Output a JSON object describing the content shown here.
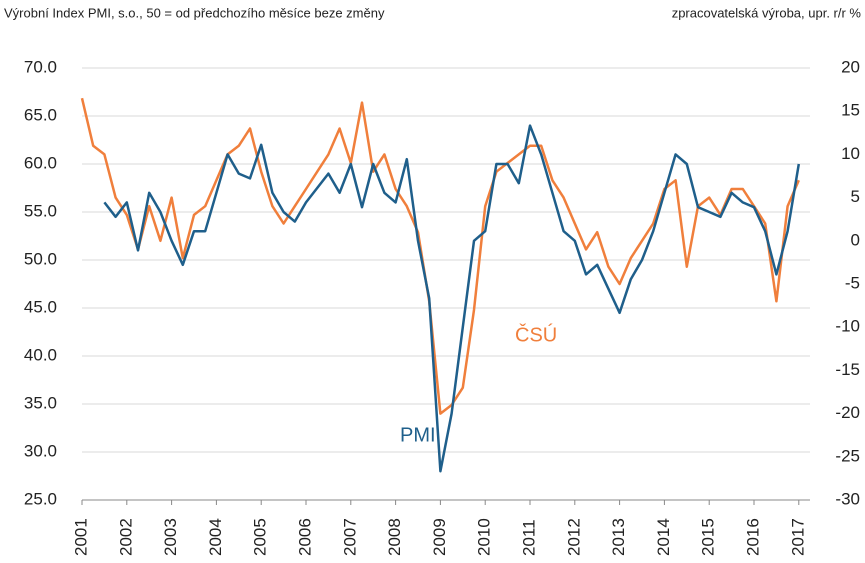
{
  "chart_data": {
    "type": "line",
    "title": "Výrobní Index PMI, s.o., 50 = od předchozího měsíce beze změny",
    "y2_label": "zpracovatelská výroba, upr. r/r %",
    "xlim": [
      2001,
      2017.25
    ],
    "xticks": [
      2001,
      2002,
      2003,
      2004,
      2005,
      2006,
      2007,
      2008,
      2009,
      2010,
      2011,
      2012,
      2013,
      2014,
      2015,
      2016,
      2017
    ],
    "ylim": [
      25,
      70
    ],
    "yticks": [
      {
        "value": 25,
        "label": "25.0"
      },
      {
        "value": 30,
        "label": "30.0"
      },
      {
        "value": 35,
        "label": "35.0"
      },
      {
        "value": 40,
        "label": "40.0"
      },
      {
        "value": 45,
        "label": "45.0"
      },
      {
        "value": 50,
        "label": "50.0"
      },
      {
        "value": 55,
        "label": "55.0"
      },
      {
        "value": 60,
        "label": "60.0"
      },
      {
        "value": 65,
        "label": "65.0"
      },
      {
        "value": 70,
        "label": "70.0"
      }
    ],
    "y2lim": [
      -30,
      20
    ],
    "y2ticks": [
      -30,
      -25,
      -20,
      -15,
      -10,
      -5,
      0,
      5,
      10,
      15,
      20
    ],
    "grid": true,
    "series": [
      {
        "name": "PMI",
        "color": "#1f5f8b",
        "x": [
          2001.5,
          2001.75,
          2002.0,
          2002.25,
          2002.5,
          2002.75,
          2003.0,
          2003.25,
          2003.5,
          2003.75,
          2004.0,
          2004.25,
          2004.5,
          2004.75,
          2005.0,
          2005.25,
          2005.5,
          2005.75,
          2006.0,
          2006.25,
          2006.5,
          2006.75,
          2007.0,
          2007.25,
          2007.5,
          2007.75,
          2008.0,
          2008.25,
          2008.5,
          2008.75,
          2009.0,
          2009.25,
          2009.5,
          2009.75,
          2010.0,
          2010.25,
          2010.5,
          2010.75,
          2011.0,
          2011.25,
          2011.5,
          2011.75,
          2012.0,
          2012.25,
          2012.5,
          2012.75,
          2013.0,
          2013.25,
          2013.5,
          2013.75,
          2014.0,
          2014.25,
          2014.5,
          2014.75,
          2015.0,
          2015.25,
          2015.5,
          2015.75,
          2016.0,
          2016.25,
          2016.5,
          2016.75,
          2017.0
        ],
        "values": [
          56,
          54.5,
          56,
          51,
          57,
          55,
          52,
          49.5,
          53,
          53,
          57,
          61,
          59,
          58.5,
          62,
          57,
          55,
          54,
          56,
          57.5,
          59,
          57,
          60,
          55.5,
          60,
          57,
          56,
          60.5,
          52,
          46,
          28,
          34,
          43,
          52,
          53,
          60,
          60,
          58,
          64,
          61,
          57,
          53,
          52,
          48.5,
          49.5,
          47,
          44.5,
          48,
          50,
          53,
          57,
          61,
          60,
          55.5,
          55,
          54.5,
          57,
          56,
          55.5,
          53,
          48.5,
          53,
          60
        ]
      },
      {
        "name": "ČSÚ",
        "color": "#f07f3c",
        "axis": "y2",
        "x": [
          2001.0,
          2001.25,
          2001.5,
          2001.75,
          2002.0,
          2002.25,
          2002.5,
          2002.75,
          2003.0,
          2003.25,
          2003.5,
          2003.75,
          2004.0,
          2004.25,
          2004.5,
          2004.75,
          2005.0,
          2005.25,
          2005.5,
          2005.75,
          2006.0,
          2006.25,
          2006.5,
          2006.75,
          2007.0,
          2007.25,
          2007.5,
          2007.75,
          2008.0,
          2008.25,
          2008.5,
          2008.75,
          2009.0,
          2009.25,
          2009.5,
          2009.75,
          2010.0,
          2010.25,
          2010.5,
          2010.75,
          2011.0,
          2011.25,
          2011.5,
          2011.75,
          2012.0,
          2012.25,
          2012.5,
          2012.75,
          2013.0,
          2013.25,
          2013.5,
          2013.75,
          2014.0,
          2014.25,
          2014.5,
          2014.75,
          2015.0,
          2015.25,
          2015.5,
          2015.75,
          2016.0,
          2016.25,
          2016.5,
          2016.75,
          2017.0
        ],
        "values": [
          16.5,
          11,
          10,
          5,
          3,
          -1,
          4,
          0,
          5,
          -2,
          3,
          4,
          7,
          10,
          11,
          13,
          8,
          4,
          2,
          4,
          6,
          8,
          10,
          13,
          9,
          16,
          8,
          10,
          6,
          4,
          1,
          -7,
          -20,
          -19,
          -17,
          -8,
          4,
          8,
          9,
          10,
          11,
          11,
          7,
          5,
          2,
          -1,
          1,
          -3,
          -5,
          -2,
          0,
          2,
          6,
          7,
          -3,
          4,
          5,
          3,
          6,
          6,
          4,
          2,
          -7,
          4,
          7
        ]
      }
    ]
  }
}
